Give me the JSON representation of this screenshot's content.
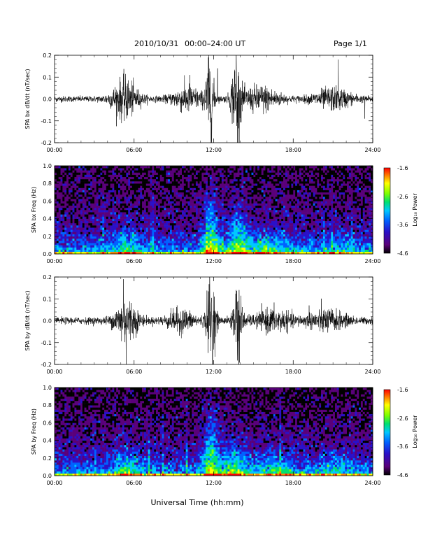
{
  "header": {
    "date": "2010/10/31",
    "time_range": "00:00–24:00 UT",
    "page": "Page 1/1"
  },
  "x_axis": {
    "label": "Universal Time (hh:mm)",
    "ticks": [
      "00:00",
      "06:00",
      "12:00",
      "18:00",
      "24:00"
    ]
  },
  "chart_data": [
    {
      "type": "line",
      "ylabel": "SPA bx dB/dt (nT/sec)",
      "ylim": [
        -0.2,
        0.2
      ],
      "yticks": [
        "0.2",
        "0.1",
        "0.0",
        "-0.1",
        "-0.2"
      ],
      "x_range_hours": [
        0,
        24
      ],
      "baseline_amplitude": 0.012,
      "bursts": [
        {
          "center_h": 5.3,
          "width_h": 1.4,
          "amp": 0.08
        },
        {
          "center_h": 10.0,
          "width_h": 1.5,
          "amp": 0.05
        },
        {
          "center_h": 11.7,
          "width_h": 0.45,
          "amp": 0.17
        },
        {
          "center_h": 13.7,
          "width_h": 0.5,
          "amp": 0.17
        },
        {
          "center_h": 15.5,
          "width_h": 2.0,
          "amp": 0.05
        },
        {
          "center_h": 21.0,
          "width_h": 2.0,
          "amp": 0.04
        }
      ],
      "spikes": [
        {
          "time_h": 5.5,
          "value": 0.07
        },
        {
          "time_h": 10.2,
          "value": 0.11
        },
        {
          "time_h": 11.6,
          "value": 0.19
        },
        {
          "time_h": 11.8,
          "value": -0.2
        },
        {
          "time_h": 12.3,
          "value": 0.14
        },
        {
          "time_h": 13.7,
          "value": 0.2
        },
        {
          "time_h": 13.8,
          "value": -0.2
        },
        {
          "time_h": 21.4,
          "value": 0.18
        },
        {
          "time_h": 23.4,
          "value": -0.09
        }
      ]
    },
    {
      "type": "heatmap",
      "ylabel": "SPA bx Freq (Hz)",
      "ylim": [
        0.0,
        1.0
      ],
      "yticks": [
        "1.0",
        "0.8",
        "0.6",
        "0.4",
        "0.2",
        "0.0"
      ],
      "colorbar": {
        "label": "Log₁₀ Power",
        "ticks": [
          "-1.6",
          "-2.6",
          "-3.6",
          "-4.6"
        ],
        "range": [
          -4.6,
          -1.6
        ]
      },
      "colors": [
        "#000000",
        "#5a007a",
        "#2a10c8",
        "#0060ff",
        "#00c8ff",
        "#00e070",
        "#7fff00",
        "#ffff00",
        "#ff8000",
        "#ff0000"
      ],
      "background_level": -4.1,
      "activity": [
        {
          "center_h": 5.5,
          "width_h": 1.5,
          "boost": 0.5,
          "fmax": 0.35
        },
        {
          "center_h": 11.8,
          "width_h": 0.8,
          "boost": 1.1,
          "fmax": 0.6
        },
        {
          "center_h": 13.8,
          "width_h": 1.0,
          "boost": 0.9,
          "fmax": 0.5
        },
        {
          "center_h": 16.0,
          "width_h": 2.5,
          "boost": 0.6,
          "fmax": 0.25
        },
        {
          "center_h": 21.5,
          "width_h": 1.5,
          "boost": 0.3,
          "fmax": 0.25
        }
      ]
    },
    {
      "type": "line",
      "ylabel": "SPA by dB/dt (nT/sec)",
      "ylim": [
        -0.2,
        0.2
      ],
      "yticks": [
        "0.2",
        "0.1",
        "0.0",
        "-0.1",
        "-0.2"
      ],
      "x_range_hours": [
        0,
        24
      ],
      "baseline_amplitude": 0.014,
      "bursts": [
        {
          "center_h": 5.4,
          "width_h": 1.2,
          "amp": 0.09
        },
        {
          "center_h": 9.5,
          "width_h": 1.5,
          "amp": 0.04
        },
        {
          "center_h": 11.8,
          "width_h": 0.5,
          "amp": 0.17
        },
        {
          "center_h": 13.8,
          "width_h": 0.5,
          "amp": 0.15
        },
        {
          "center_h": 16.5,
          "width_h": 2.0,
          "amp": 0.04
        },
        {
          "center_h": 20.5,
          "width_h": 2.0,
          "amp": 0.04
        }
      ],
      "spikes": [
        {
          "time_h": 5.2,
          "value": 0.19
        },
        {
          "time_h": 5.4,
          "value": -0.2
        },
        {
          "time_h": 11.7,
          "value": 0.2
        },
        {
          "time_h": 11.9,
          "value": -0.2
        },
        {
          "time_h": 13.7,
          "value": 0.14
        },
        {
          "time_h": 13.9,
          "value": -0.2
        },
        {
          "time_h": 19.2,
          "value": 0.07
        }
      ]
    },
    {
      "type": "heatmap",
      "ylabel": "SPA by Freq (Hz)",
      "ylim": [
        0.0,
        1.0
      ],
      "yticks": [
        "1.0",
        "0.8",
        "0.6",
        "0.4",
        "0.2",
        "0.0"
      ],
      "colorbar": {
        "label": "Log₁₀ Power",
        "ticks": [
          "-1.6",
          "-2.6",
          "-3.6",
          "-4.6"
        ],
        "range": [
          -4.6,
          -1.6
        ]
      },
      "colors": [
        "#000000",
        "#5a007a",
        "#2a10c8",
        "#0060ff",
        "#00c8ff",
        "#00e070",
        "#7fff00",
        "#ffff00",
        "#ff8000",
        "#ff0000"
      ],
      "background_level": -4.1,
      "activity": [
        {
          "center_h": 5.5,
          "width_h": 1.5,
          "boost": 0.6,
          "fmax": 0.3
        },
        {
          "center_h": 11.8,
          "width_h": 0.8,
          "boost": 1.1,
          "fmax": 0.65
        },
        {
          "center_h": 13.5,
          "width_h": 1.2,
          "boost": 0.8,
          "fmax": 0.4
        },
        {
          "center_h": 16.5,
          "width_h": 2.5,
          "boost": 0.5,
          "fmax": 0.25
        },
        {
          "center_h": 21.0,
          "width_h": 2.0,
          "boost": 0.4,
          "fmax": 0.25
        }
      ]
    }
  ]
}
